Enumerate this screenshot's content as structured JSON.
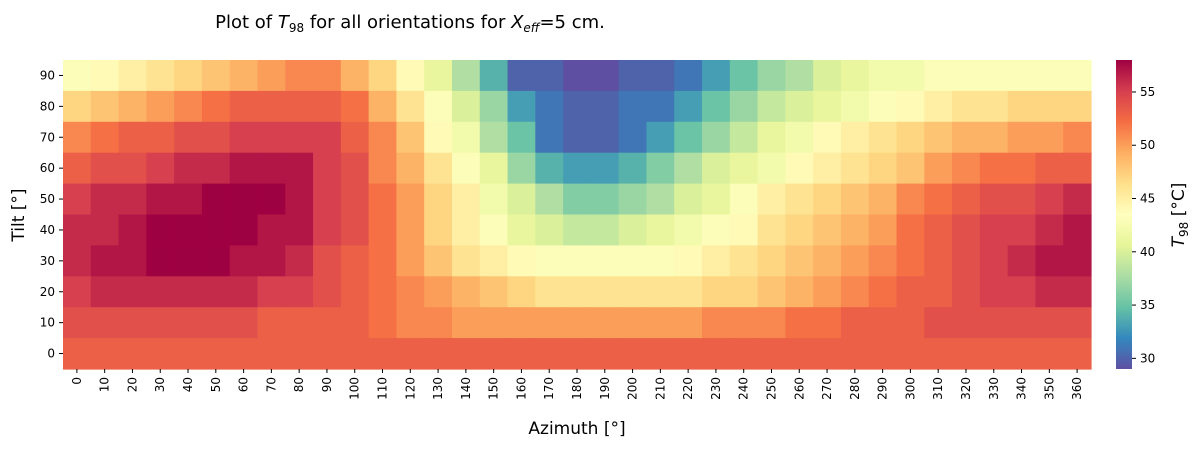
{
  "chart_data": {
    "type": "heatmap",
    "title_parts": {
      "prefix": "Plot of ",
      "t_base": "T",
      "t_sub": "98",
      "mid": " for all orientations for ",
      "x_base": "X",
      "x_sub": "eff",
      "suffix": "=5 cm."
    },
    "xlabel": "Azimuth [°]",
    "ylabel": "Tilt [°]",
    "colorbar_label": {
      "base": "T",
      "sub": "98",
      "unit": " [°C]"
    },
    "colormap": "Spectral_r",
    "vmin": 29,
    "vmax": 58,
    "colorbar_ticks": [
      30,
      35,
      40,
      45,
      50,
      55
    ],
    "x": [
      0,
      10,
      20,
      30,
      40,
      50,
      60,
      70,
      80,
      90,
      100,
      110,
      120,
      130,
      140,
      150,
      160,
      170,
      180,
      190,
      200,
      210,
      220,
      230,
      240,
      250,
      260,
      270,
      280,
      290,
      300,
      310,
      320,
      330,
      340,
      350,
      360
    ],
    "y": [
      90,
      80,
      70,
      60,
      50,
      40,
      30,
      20,
      10,
      0
    ],
    "z": [
      [
        43,
        44,
        45,
        46,
        47,
        48,
        49,
        50,
        51,
        51,
        49,
        47,
        44,
        41,
        38,
        34,
        30,
        30,
        29,
        29,
        30,
        30,
        31,
        33,
        35,
        37,
        38,
        40,
        41,
        42,
        42,
        43,
        43,
        43,
        43,
        43,
        43
      ],
      [
        47,
        48,
        49,
        50,
        51,
        52,
        53,
        53,
        53,
        53,
        52,
        49,
        46,
        43,
        40,
        37,
        33,
        31,
        30,
        30,
        31,
        31,
        33,
        35,
        37,
        39,
        40,
        41,
        42,
        43,
        44,
        45,
        46,
        46,
        47,
        47,
        47
      ],
      [
        51,
        52,
        53,
        53,
        54,
        54,
        55,
        55,
        55,
        55,
        53,
        51,
        48,
        44,
        42,
        38,
        35,
        31,
        30,
        30,
        31,
        33,
        35,
        37,
        39,
        41,
        42,
        44,
        45,
        46,
        47,
        48,
        49,
        49,
        50,
        50,
        51
      ],
      [
        53,
        54,
        54,
        55,
        56,
        56,
        57,
        57,
        57,
        55,
        54,
        51,
        49,
        46,
        43,
        41,
        37,
        34,
        33,
        33,
        34,
        36,
        38,
        40,
        41,
        42,
        44,
        45,
        46,
        47,
        48,
        50,
        51,
        52,
        52,
        53,
        53
      ],
      [
        55,
        56,
        56,
        57,
        57,
        58,
        58,
        58,
        57,
        55,
        54,
        52,
        50,
        47,
        45,
        42,
        40,
        38,
        36,
        36,
        37,
        38,
        40,
        41,
        43,
        45,
        46,
        47,
        48,
        49,
        51,
        52,
        53,
        54,
        54,
        55,
        56
      ],
      [
        56,
        56,
        57,
        58,
        58,
        58,
        58,
        57,
        57,
        55,
        54,
        52,
        50,
        47,
        45,
        43,
        41,
        40,
        39,
        39,
        40,
        41,
        42,
        43,
        44,
        46,
        47,
        48,
        49,
        50,
        52,
        53,
        54,
        55,
        55,
        56,
        57
      ],
      [
        56,
        57,
        57,
        58,
        58,
        58,
        57,
        57,
        56,
        54,
        53,
        52,
        50,
        48,
        46,
        45,
        44,
        43,
        43,
        43,
        43,
        43,
        44,
        45,
        46,
        47,
        48,
        49,
        50,
        51,
        52,
        53,
        54,
        55,
        56,
        57,
        57
      ],
      [
        55,
        56,
        56,
        56,
        56,
        56,
        56,
        55,
        55,
        54,
        53,
        52,
        51,
        50,
        49,
        48,
        47,
        46,
        46,
        46,
        46,
        46,
        46,
        47,
        47,
        48,
        49,
        50,
        51,
        52,
        53,
        53,
        54,
        55,
        55,
        56,
        56
      ],
      [
        54,
        54,
        54,
        54,
        54,
        54,
        54,
        53,
        53,
        53,
        53,
        52,
        51,
        51,
        50,
        50,
        50,
        50,
        50,
        50,
        50,
        50,
        50,
        51,
        51,
        51,
        52,
        52,
        53,
        53,
        53,
        54,
        54,
        54,
        54,
        54,
        54
      ],
      [
        53,
        53,
        53,
        53,
        53,
        53,
        53,
        53,
        53,
        53,
        53,
        53,
        53,
        53,
        53,
        53,
        53,
        53,
        53,
        53,
        53,
        53,
        53,
        53,
        53,
        53,
        53,
        53,
        53,
        53,
        53,
        53,
        53,
        53,
        53,
        53,
        53
      ]
    ]
  }
}
